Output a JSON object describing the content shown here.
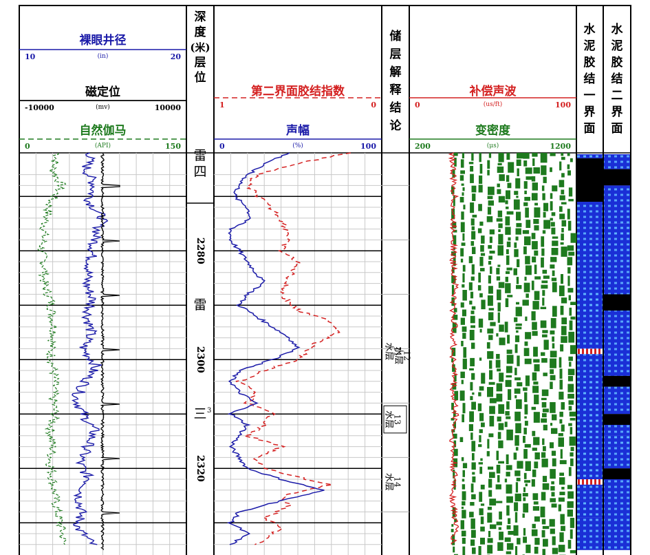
{
  "track1": {
    "caliper": {
      "title": "裸眼井径",
      "min": "10",
      "unit": "(in)",
      "max": "20",
      "color": "#1a1aa8"
    },
    "ccl": {
      "title": "磁定位",
      "min": "-10000",
      "unit": "(mv)",
      "max": "10000",
      "color": "#000000"
    },
    "gr": {
      "title": "自然伽马",
      "min": "0",
      "unit": "(API)",
      "max": "150",
      "color": "#1e7a1e"
    }
  },
  "depth_track": {
    "title_chars": [
      "深",
      "度",
      "(米)",
      "层",
      "位"
    ]
  },
  "track2": {
    "cbi": {
      "title": "第二界面胶结指数",
      "left": "1",
      "right": "0",
      "color": "#d42020"
    },
    "amp": {
      "title": "声幅",
      "min": "0",
      "unit": "(%)",
      "max": "100",
      "color": "#1a1aa8"
    }
  },
  "interp_track": {
    "title_chars": [
      "储",
      "层",
      "解",
      "释",
      "结",
      "论"
    ]
  },
  "track3": {
    "dt": {
      "title": "补偿声波",
      "min": "0",
      "unit": "(us/ft)",
      "max": "100",
      "color": "#d42020"
    },
    "vdl": {
      "title": "变密度",
      "min": "200",
      "unit": "(μs)",
      "max": "1200",
      "color": "#1e7a1e"
    }
  },
  "track4": {
    "title_chars": [
      "水",
      "泥",
      "胶",
      "结",
      "一",
      "界",
      "面"
    ]
  },
  "track5": {
    "title_chars": [
      "水",
      "泥",
      "胶",
      "结",
      "二",
      "界",
      "面"
    ]
  },
  "depth_labels": [
    {
      "depth": 2280,
      "text": "2280"
    },
    {
      "depth": 2300,
      "text": "2300"
    },
    {
      "depth": 2320,
      "text": "2320"
    }
  ],
  "formations": [
    {
      "text": "雷",
      "depth": 2262.5
    },
    {
      "text": "四",
      "depth": 2265.5
    },
    {
      "text": "雷",
      "depth": 2290
    },
    {
      "text": "三",
      "depth": 2310,
      "sup": "3"
    }
  ],
  "zones": [
    {
      "num": "11",
      "label": "水层",
      "top": 2297,
      "bottom": 2300
    },
    {
      "num": "12",
      "label": "水层",
      "top": 2297,
      "bottom": 2300
    },
    {
      "num": "13",
      "label": "水层",
      "top": 2308.5,
      "bottom": 2313.5
    },
    {
      "num": "14",
      "label": "水层",
      "top": 2320.5,
      "bottom": 2324.5
    }
  ],
  "chart_data": {
    "type": "well-log",
    "depth_unit": "m",
    "depth_range": [
      2262,
      2335
    ],
    "curves": {
      "gr_api": [
        [
          2262,
          35
        ],
        [
          2265,
          30
        ],
        [
          2268,
          38
        ],
        [
          2271,
          28
        ],
        [
          2274,
          24
        ],
        [
          2277,
          22
        ],
        [
          2280,
          20
        ],
        [
          2283,
          23
        ],
        [
          2286,
          22
        ],
        [
          2289,
          28
        ],
        [
          2292,
          30
        ],
        [
          2295,
          32
        ],
        [
          2298,
          28
        ],
        [
          2301,
          30
        ],
        [
          2304,
          32
        ],
        [
          2307,
          30
        ],
        [
          2310,
          32
        ],
        [
          2313,
          28
        ],
        [
          2316,
          30
        ],
        [
          2319,
          28
        ],
        [
          2322,
          30
        ],
        [
          2325,
          32
        ],
        [
          2328,
          34
        ],
        [
          2331,
          38
        ],
        [
          2334,
          40
        ]
      ],
      "caliper_in": [
        [
          2262,
          14.3
        ],
        [
          2265,
          14.0
        ],
        [
          2268,
          14.5
        ],
        [
          2271,
          14.2
        ],
        [
          2274,
          15.0
        ],
        [
          2277,
          14.6
        ],
        [
          2280,
          14.4
        ],
        [
          2283,
          14.2
        ],
        [
          2286,
          14.0
        ],
        [
          2289,
          14.4
        ],
        [
          2292,
          14.1
        ],
        [
          2295,
          14.3
        ],
        [
          2298,
          13.8
        ],
        [
          2301,
          14.6
        ],
        [
          2304,
          14.0
        ],
        [
          2307,
          13.4
        ],
        [
          2310,
          13.8
        ],
        [
          2313,
          14.5
        ],
        [
          2316,
          14.1
        ],
        [
          2319,
          13.6
        ],
        [
          2322,
          14.2
        ],
        [
          2325,
          13.6
        ],
        [
          2328,
          13.7
        ],
        [
          2331,
          13.5
        ],
        [
          2334,
          14.4
        ]
      ],
      "cbi_second": [
        [
          2262,
          0.2
        ],
        [
          2264,
          0.5
        ],
        [
          2266,
          0.75
        ],
        [
          2268,
          0.8
        ],
        [
          2271,
          0.7
        ],
        [
          2274,
          0.6
        ],
        [
          2277,
          0.55
        ],
        [
          2280,
          0.6
        ],
        [
          2282,
          0.5
        ],
        [
          2285,
          0.55
        ],
        [
          2288,
          0.6
        ],
        [
          2291,
          0.5
        ],
        [
          2293,
          0.3
        ],
        [
          2295,
          0.25
        ],
        [
          2297,
          0.4
        ],
        [
          2300,
          0.5
        ],
        [
          2302,
          0.7
        ],
        [
          2304,
          0.85
        ],
        [
          2306,
          0.75
        ],
        [
          2308,
          0.8
        ],
        [
          2310,
          0.65
        ],
        [
          2312,
          0.7
        ],
        [
          2314,
          0.8
        ],
        [
          2316,
          0.6
        ],
        [
          2318,
          0.75
        ],
        [
          2320,
          0.7
        ],
        [
          2322,
          0.45
        ],
        [
          2323,
          0.3
        ],
        [
          2325,
          0.6
        ],
        [
          2327,
          0.55
        ],
        [
          2329,
          0.7
        ],
        [
          2331,
          0.6
        ],
        [
          2334,
          0.75
        ]
      ],
      "amplitude_pct": [
        [
          2262,
          45
        ],
        [
          2264,
          30
        ],
        [
          2266,
          20
        ],
        [
          2268,
          15
        ],
        [
          2270,
          12
        ],
        [
          2272,
          20
        ],
        [
          2274,
          22
        ],
        [
          2276,
          10
        ],
        [
          2278,
          10
        ],
        [
          2280,
          15
        ],
        [
          2282,
          20
        ],
        [
          2284,
          25
        ],
        [
          2286,
          30
        ],
        [
          2288,
          20
        ],
        [
          2290,
          15
        ],
        [
          2292,
          25
        ],
        [
          2294,
          35
        ],
        [
          2296,
          45
        ],
        [
          2298,
          50
        ],
        [
          2300,
          35
        ],
        [
          2302,
          15
        ],
        [
          2304,
          10
        ],
        [
          2306,
          15
        ],
        [
          2308,
          25
        ],
        [
          2310,
          10
        ],
        [
          2312,
          20
        ],
        [
          2314,
          15
        ],
        [
          2316,
          10
        ],
        [
          2318,
          15
        ],
        [
          2320,
          20
        ],
        [
          2322,
          40
        ],
        [
          2324,
          65
        ],
        [
          2326,
          40
        ],
        [
          2328,
          15
        ],
        [
          2330,
          10
        ],
        [
          2332,
          20
        ],
        [
          2334,
          10
        ]
      ],
      "dt_us_ft": [
        [
          2262,
          26
        ],
        [
          2266,
          26
        ],
        [
          2270,
          27
        ],
        [
          2274,
          26
        ],
        [
          2278,
          27
        ],
        [
          2282,
          26
        ],
        [
          2286,
          28
        ],
        [
          2290,
          26
        ],
        [
          2294,
          27
        ],
        [
          2298,
          26
        ],
        [
          2302,
          27
        ],
        [
          2306,
          26
        ],
        [
          2310,
          28
        ],
        [
          2314,
          26
        ],
        [
          2318,
          26
        ],
        [
          2322,
          27
        ],
        [
          2326,
          26
        ],
        [
          2330,
          28
        ],
        [
          2334,
          26
        ]
      ],
      "bond_first": [
        [
          2262,
          "good"
        ],
        [
          2263,
          "free"
        ],
        [
          2271,
          "partial"
        ],
        [
          2278,
          "good"
        ],
        [
          2281,
          "partial"
        ],
        [
          2287,
          "good"
        ],
        [
          2292,
          "partial"
        ],
        [
          2298,
          "bad"
        ],
        [
          2299,
          "partial"
        ],
        [
          2303,
          "good"
        ],
        [
          2317,
          "good"
        ],
        [
          2322,
          "bad"
        ],
        [
          2323,
          "partial"
        ],
        [
          2326,
          "good"
        ],
        [
          2329,
          "partial"
        ],
        [
          2335,
          "good"
        ]
      ],
      "bond_second": [
        [
          2262,
          "partial"
        ],
        [
          2265,
          "free"
        ],
        [
          2268,
          "partial"
        ],
        [
          2275,
          "good"
        ],
        [
          2277,
          "partial"
        ],
        [
          2288,
          "free"
        ],
        [
          2291,
          "partial"
        ],
        [
          2303,
          "free"
        ],
        [
          2305,
          "partial"
        ],
        [
          2310,
          "free"
        ],
        [
          2312,
          "partial"
        ],
        [
          2314,
          "good"
        ],
        [
          2316,
          "partial"
        ],
        [
          2320,
          "free"
        ],
        [
          2322,
          "partial"
        ],
        [
          2335,
          "partial"
        ]
      ]
    }
  }
}
